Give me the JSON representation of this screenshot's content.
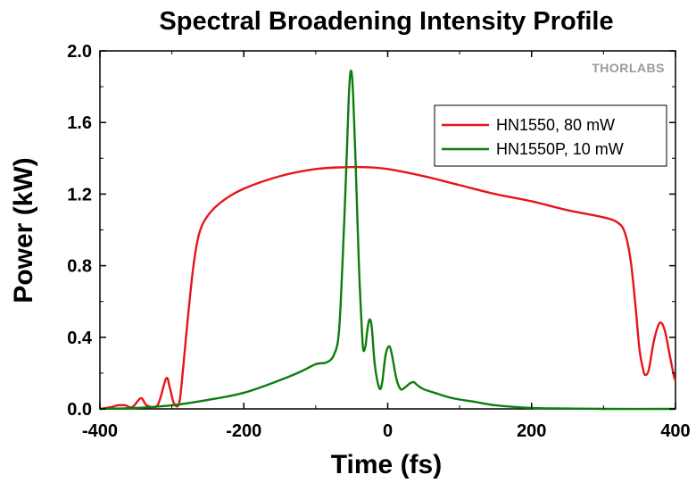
{
  "chart_data": {
    "type": "line",
    "title": "Spectral Broadening Intensity Profile",
    "xlabel": "Time (fs)",
    "ylabel": "Power (kW)",
    "xlim": [
      -400,
      400
    ],
    "ylim": [
      0,
      2.0
    ],
    "xticks": [
      -400,
      -200,
      0,
      200,
      400
    ],
    "xtick_labels": [
      "-400",
      "-200",
      "0",
      "200",
      "400"
    ],
    "yticks": [
      0,
      0.4,
      0.8,
      1.2,
      1.6,
      2.0
    ],
    "ytick_labels": [
      "0.0",
      "0.4",
      "0.8",
      "1.2",
      "1.6",
      "2.0"
    ],
    "grid": false,
    "legend_position": "top-right",
    "watermark": "THORLABS",
    "series": [
      {
        "name": "HN1550, 80 mW",
        "color": "#e8141c",
        "points": [
          [
            -400,
            0.0
          ],
          [
            -385,
            0.01
          ],
          [
            -375,
            0.02
          ],
          [
            -365,
            0.02
          ],
          [
            -355,
            0.01
          ],
          [
            -343,
            0.06
          ],
          [
            -335,
            0.02
          ],
          [
            -320,
            0.02
          ],
          [
            -308,
            0.17
          ],
          [
            -303,
            0.12
          ],
          [
            -297,
            0.03
          ],
          [
            -290,
            0.03
          ],
          [
            -285,
            0.2
          ],
          [
            -278,
            0.5
          ],
          [
            -270,
            0.8
          ],
          [
            -262,
            0.98
          ],
          [
            -250,
            1.08
          ],
          [
            -230,
            1.16
          ],
          [
            -200,
            1.23
          ],
          [
            -150,
            1.3
          ],
          [
            -100,
            1.34
          ],
          [
            -60,
            1.35
          ],
          [
            -30,
            1.35
          ],
          [
            0,
            1.34
          ],
          [
            50,
            1.3
          ],
          [
            100,
            1.25
          ],
          [
            150,
            1.2
          ],
          [
            200,
            1.16
          ],
          [
            250,
            1.11
          ],
          [
            300,
            1.07
          ],
          [
            320,
            1.04
          ],
          [
            330,
            0.98
          ],
          [
            338,
            0.82
          ],
          [
            345,
            0.55
          ],
          [
            350,
            0.33
          ],
          [
            355,
            0.22
          ],
          [
            358,
            0.19
          ],
          [
            363,
            0.22
          ],
          [
            370,
            0.38
          ],
          [
            378,
            0.48
          ],
          [
            385,
            0.44
          ],
          [
            392,
            0.3
          ],
          [
            398,
            0.18
          ],
          [
            400,
            0.16
          ]
        ]
      },
      {
        "name": "HN1550P, 10 mW",
        "color": "#0d7d0d",
        "points": [
          [
            -400,
            0.0
          ],
          [
            -350,
            0.005
          ],
          [
            -300,
            0.02
          ],
          [
            -250,
            0.05
          ],
          [
            -200,
            0.09
          ],
          [
            -150,
            0.16
          ],
          [
            -120,
            0.21
          ],
          [
            -100,
            0.25
          ],
          [
            -85,
            0.26
          ],
          [
            -75,
            0.3
          ],
          [
            -68,
            0.42
          ],
          [
            -63,
            0.8
          ],
          [
            -58,
            1.3
          ],
          [
            -54,
            1.75
          ],
          [
            -51,
            1.89
          ],
          [
            -48,
            1.75
          ],
          [
            -44,
            1.3
          ],
          [
            -40,
            0.8
          ],
          [
            -36,
            0.45
          ],
          [
            -34,
            0.33
          ],
          [
            -31,
            0.35
          ],
          [
            -28,
            0.45
          ],
          [
            -25,
            0.5
          ],
          [
            -22,
            0.45
          ],
          [
            -18,
            0.25
          ],
          [
            -12,
            0.12
          ],
          [
            -8,
            0.14
          ],
          [
            -3,
            0.3
          ],
          [
            2,
            0.35
          ],
          [
            6,
            0.3
          ],
          [
            12,
            0.17
          ],
          [
            18,
            0.11
          ],
          [
            24,
            0.12
          ],
          [
            30,
            0.14
          ],
          [
            36,
            0.15
          ],
          [
            42,
            0.13
          ],
          [
            50,
            0.11
          ],
          [
            65,
            0.09
          ],
          [
            90,
            0.06
          ],
          [
            120,
            0.04
          ],
          [
            150,
            0.02
          ],
          [
            200,
            0.005
          ],
          [
            250,
            0.002
          ],
          [
            300,
            0.0
          ],
          [
            400,
            0.0
          ]
        ]
      }
    ]
  }
}
